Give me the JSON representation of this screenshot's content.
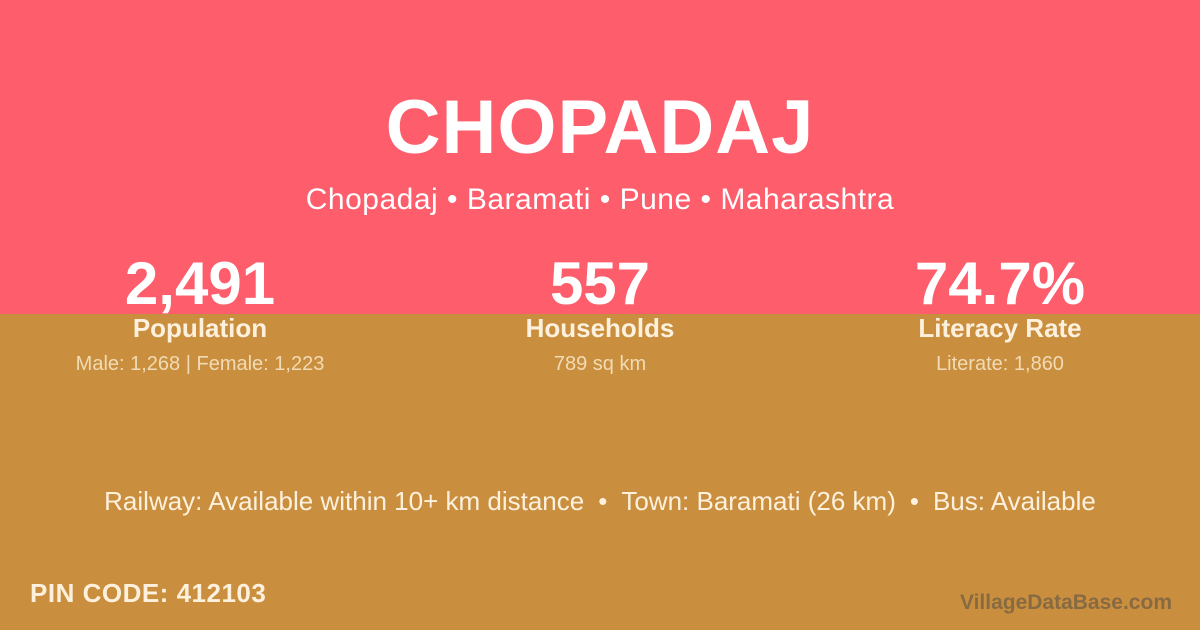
{
  "header": {
    "title": "CHOPADAJ",
    "breadcrumb": "Chopadaj • Baramati • Pune • Maharashtra"
  },
  "stats": [
    {
      "value": "2,491",
      "label": "Population",
      "detail": "Male: 1,268 | Female: 1,223"
    },
    {
      "value": "557",
      "label": "Households",
      "detail": "789 sq km"
    },
    {
      "value": "74.7%",
      "label": "Literacy Rate",
      "detail": "Literate: 1,860"
    }
  ],
  "info": {
    "railway": "Railway: Available within 10+ km distance",
    "separator": "•",
    "town": "Town: Baramati (26 km)",
    "bus": "Bus: Available"
  },
  "footer": {
    "pin_code": "PIN CODE: 412103",
    "watermark": "VillageDataBase.com"
  },
  "colors": {
    "band_top": "#fe5d6c",
    "band_bottom": "#ca8f3e",
    "text_primary": "#ffffff",
    "text_cream": "#fdf1de",
    "text_muted_cream": "#f1dbb5",
    "watermark_color": "rgba(70,70,70,0.5)"
  }
}
